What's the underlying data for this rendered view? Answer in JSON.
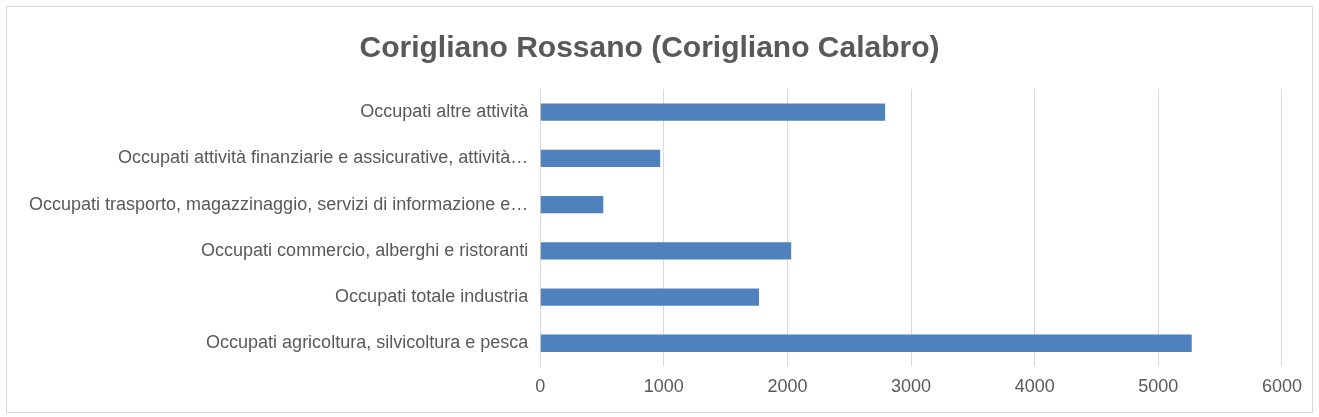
{
  "chart_data": {
    "type": "bar",
    "orientation": "horizontal",
    "title": "Corigliano Rossano (Corigliano Calabro)",
    "categories": [
      "Occupati altre attività",
      "Occupati attività finanziarie e assicurative, attività…",
      "Occupati trasporto, magazzinaggio, servizi di informazione e…",
      "Occupati commercio, alberghi e ristoranti",
      "Occupati totale industria",
      "Occupati agricoltura, silvicoltura e pesca"
    ],
    "values": [
      2790,
      970,
      510,
      2030,
      1770,
      5270
    ],
    "color": "#4f81bd",
    "xlim": [
      0,
      6000
    ],
    "xticks": [
      0,
      1000,
      2000,
      3000,
      4000,
      5000,
      6000
    ],
    "grid": "x",
    "legend": false
  }
}
